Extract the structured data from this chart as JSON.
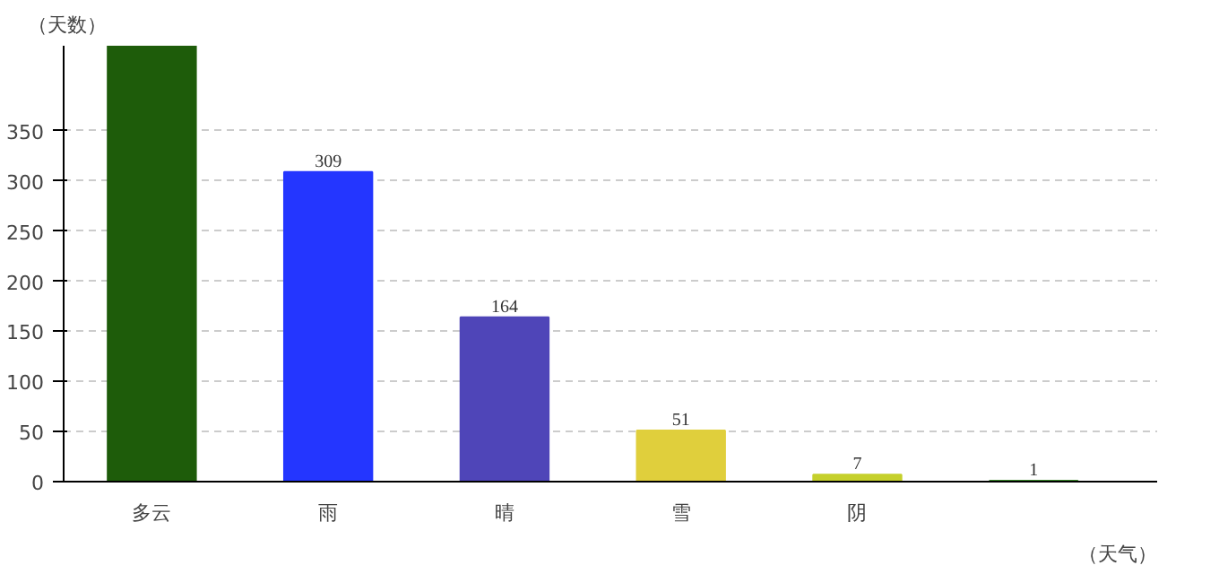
{
  "chart_data": {
    "type": "bar",
    "xlabel": "（天气）",
    "ylabel": "（天数）",
    "categories": [
      "多云",
      "雨",
      "晴",
      "雪",
      "阴",
      null
    ],
    "values": [
      435,
      309,
      164,
      51,
      7,
      1
    ],
    "value_labels": [
      null,
      "309",
      "164",
      "51",
      "7",
      "1"
    ],
    "colors": [
      "#1e5c0a",
      "#2436ff",
      "#4f45b8",
      "#e0cf3c",
      "#c5d02c",
      "#3a8a2a"
    ],
    "ylim": [
      0,
      435
    ],
    "yticks": [
      0,
      50,
      100,
      150,
      200,
      250,
      300,
      350
    ],
    "grid": "y"
  }
}
